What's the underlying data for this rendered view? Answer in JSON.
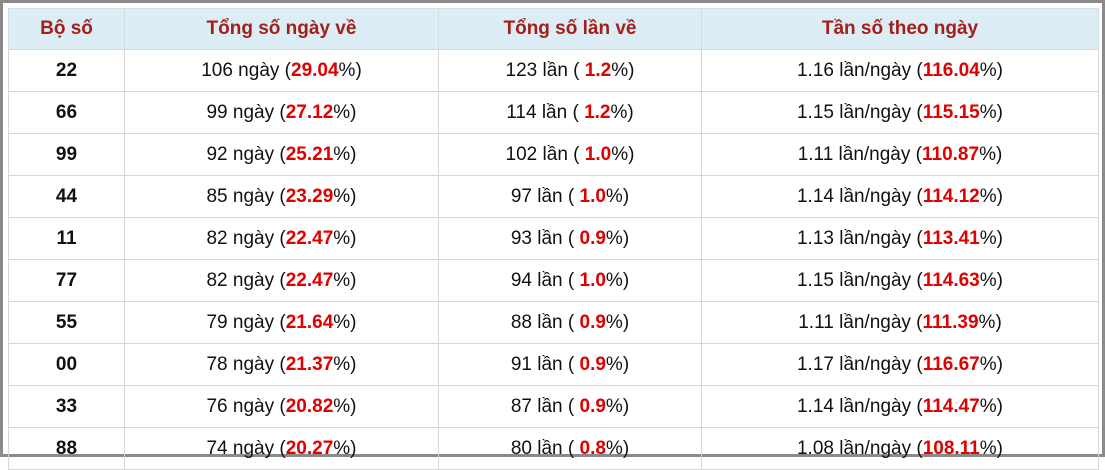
{
  "table": {
    "header": [
      "Bộ số",
      "Tổng số ngày về",
      "Tổng số lần về",
      "Tần số theo ngày"
    ],
    "rows": [
      [
        "22",
        [
          "106 ngày (",
          "29.04",
          "%)"
        ],
        [
          "123 lần ( ",
          "1.2",
          "%)"
        ],
        [
          "1.16 lần/ngày (",
          "116.04",
          "%)"
        ]
      ],
      [
        "66",
        [
          "99 ngày (",
          "27.12",
          "%)"
        ],
        [
          "114 lần ( ",
          "1.2",
          "%)"
        ],
        [
          "1.15 lần/ngày (",
          "115.15",
          "%)"
        ]
      ],
      [
        "99",
        [
          "92 ngày (",
          "25.21",
          "%)"
        ],
        [
          "102 lần ( ",
          "1.0",
          "%)"
        ],
        [
          "1.11 lần/ngày (",
          "110.87",
          "%)"
        ]
      ],
      [
        "44",
        [
          "85 ngày (",
          "23.29",
          "%)"
        ],
        [
          "97 lần ( ",
          "1.0",
          "%)"
        ],
        [
          "1.14 lần/ngày (",
          "114.12",
          "%)"
        ]
      ],
      [
        "11",
        [
          "82 ngày (",
          "22.47",
          "%)"
        ],
        [
          "93 lần ( ",
          "0.9",
          "%)"
        ],
        [
          "1.13 lần/ngày (",
          "113.41",
          "%)"
        ]
      ],
      [
        "77",
        [
          "82 ngày (",
          "22.47",
          "%)"
        ],
        [
          "94 lần ( ",
          "1.0",
          "%)"
        ],
        [
          "1.15 lần/ngày (",
          "114.63",
          "%)"
        ]
      ],
      [
        "55",
        [
          "79 ngày (",
          "21.64",
          "%)"
        ],
        [
          "88 lần ( ",
          "0.9",
          "%)"
        ],
        [
          "1.11 lần/ngày (",
          "111.39",
          "%)"
        ]
      ],
      [
        "00",
        [
          "78 ngày (",
          "21.37",
          "%)"
        ],
        [
          "91 lần ( ",
          "0.9",
          "%)"
        ],
        [
          "1.17 lần/ngày (",
          "116.67",
          "%)"
        ]
      ],
      [
        "33",
        [
          "76 ngày (",
          "20.82",
          "%)"
        ],
        [
          "87 lần ( ",
          "0.9",
          "%)"
        ],
        [
          "1.14 lần/ngày (",
          "114.47",
          "%)"
        ]
      ],
      [
        "88",
        [
          "74 ngày (",
          "20.27",
          "%)"
        ],
        [
          "80 lần ( ",
          "0.8",
          "%)"
        ],
        [
          "1.08 lần/ngày (",
          "108.11",
          "%)"
        ]
      ]
    ]
  }
}
